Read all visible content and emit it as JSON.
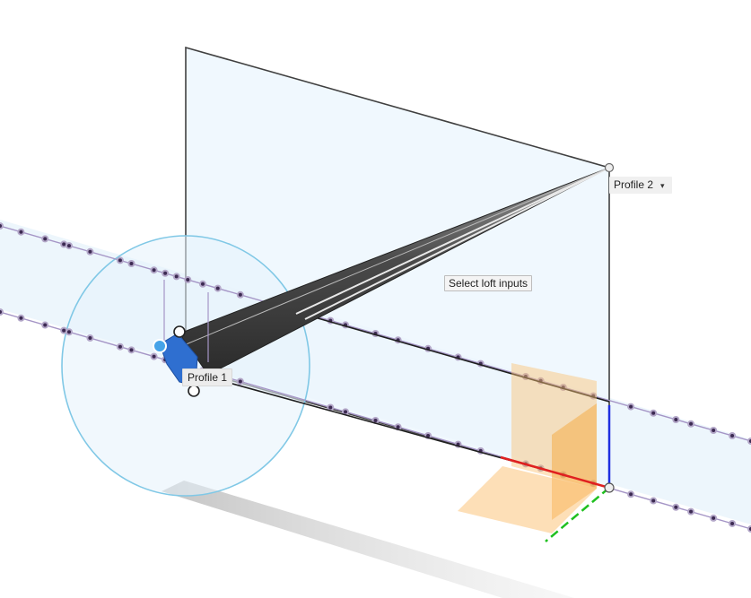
{
  "viewport": {
    "colors": {
      "plane_fill": "#eef7fe",
      "plane_edge": "#1f1f1f",
      "circle_stroke": "#7fc8e4",
      "circle_fill": "#e7f4fb",
      "dot_dark": "#3c2a52",
      "dot_ring": "#b3a7c8",
      "rail": "#a595c6",
      "loft_dark": "#323232",
      "loft_light": "#777777",
      "profile1_fill": "#2f6fd0",
      "axis_x": "#e02020",
      "axis_y": "#20c020",
      "axis_z": "#2030e0",
      "triad_fill": "#fbc070",
      "shadow": "#c8c8c8"
    }
  },
  "labels": {
    "profile2": "Profile 2",
    "profile2_caret": "▾",
    "profile1": "Profile 1",
    "hint": "Select loft inputs"
  }
}
